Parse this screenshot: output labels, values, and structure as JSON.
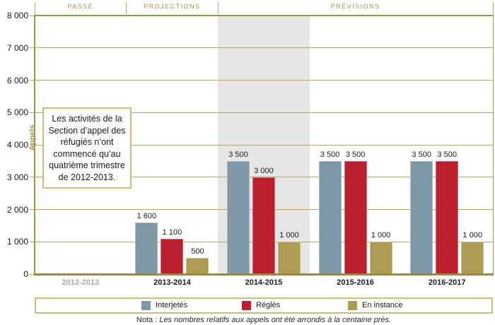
{
  "colors": {
    "accent_gold": "#a2934e",
    "gridline": "#b4a65f",
    "axis_bottom": "#998b45",
    "highlight_band": "#e6e6e6",
    "muted_label": "#a8a8a8",
    "series_interjetes": "#7f98a6",
    "series_regles": "#bb202e",
    "series_en_instance": "#ac9c53"
  },
  "header": {
    "bands": [
      {
        "label": "PASSÉ",
        "from": 0,
        "to": 1
      },
      {
        "label": "PROJECTIONS",
        "from": 1,
        "to": 2
      },
      {
        "label": "PRÉVISIONS",
        "from": 2,
        "to": 5
      }
    ]
  },
  "chart_data": {
    "type": "bar",
    "title": "",
    "categories": [
      "2012-2013",
      "2013-2014",
      "2014-2015",
      "2015-2016",
      "2016-2017"
    ],
    "muted_category_indexes": [
      0
    ],
    "highlight_category_index": 2,
    "series": [
      {
        "name": "Interjetés",
        "color": "#7f98a6",
        "values": [
          null,
          1600,
          3500,
          3500,
          3500
        ],
        "display_values": [
          "",
          "1 600",
          "3 500",
          "3 500",
          "3 500"
        ]
      },
      {
        "name": "Réglés",
        "color": "#bb202e",
        "values": [
          null,
          1100,
          3000,
          3500,
          3500
        ],
        "display_values": [
          "",
          "1 100",
          "3 000",
          "3 500",
          "3 500"
        ]
      },
      {
        "name": "En instance",
        "color": "#ac9c53",
        "values": [
          null,
          500,
          1000,
          1000,
          1000
        ],
        "display_values": [
          "",
          "500",
          "1 000",
          "1 000",
          "1 000"
        ]
      }
    ],
    "xlabel": "",
    "ylabel": "Appels",
    "ylim": [
      0,
      8000
    ],
    "y_ticks": {
      "values": [
        0,
        1000,
        2000,
        3000,
        4000,
        5000,
        6000,
        7000,
        8000
      ],
      "labels": [
        "0",
        "1 000",
        "2 000",
        "3 000",
        "4 000",
        "5 000",
        "6 000",
        "7 000",
        "8 000"
      ]
    },
    "grid": true,
    "legend_position": "bottom",
    "annotation": "Les activités de la Section d’appel des réfugiés n’ont commencé qu’au quatrième trimestre de 2012-2013."
  },
  "note": {
    "prefix": "Nota",
    "rest": " : Les nombres relatifs aux appels ont été arrondis à la centaine près."
  }
}
